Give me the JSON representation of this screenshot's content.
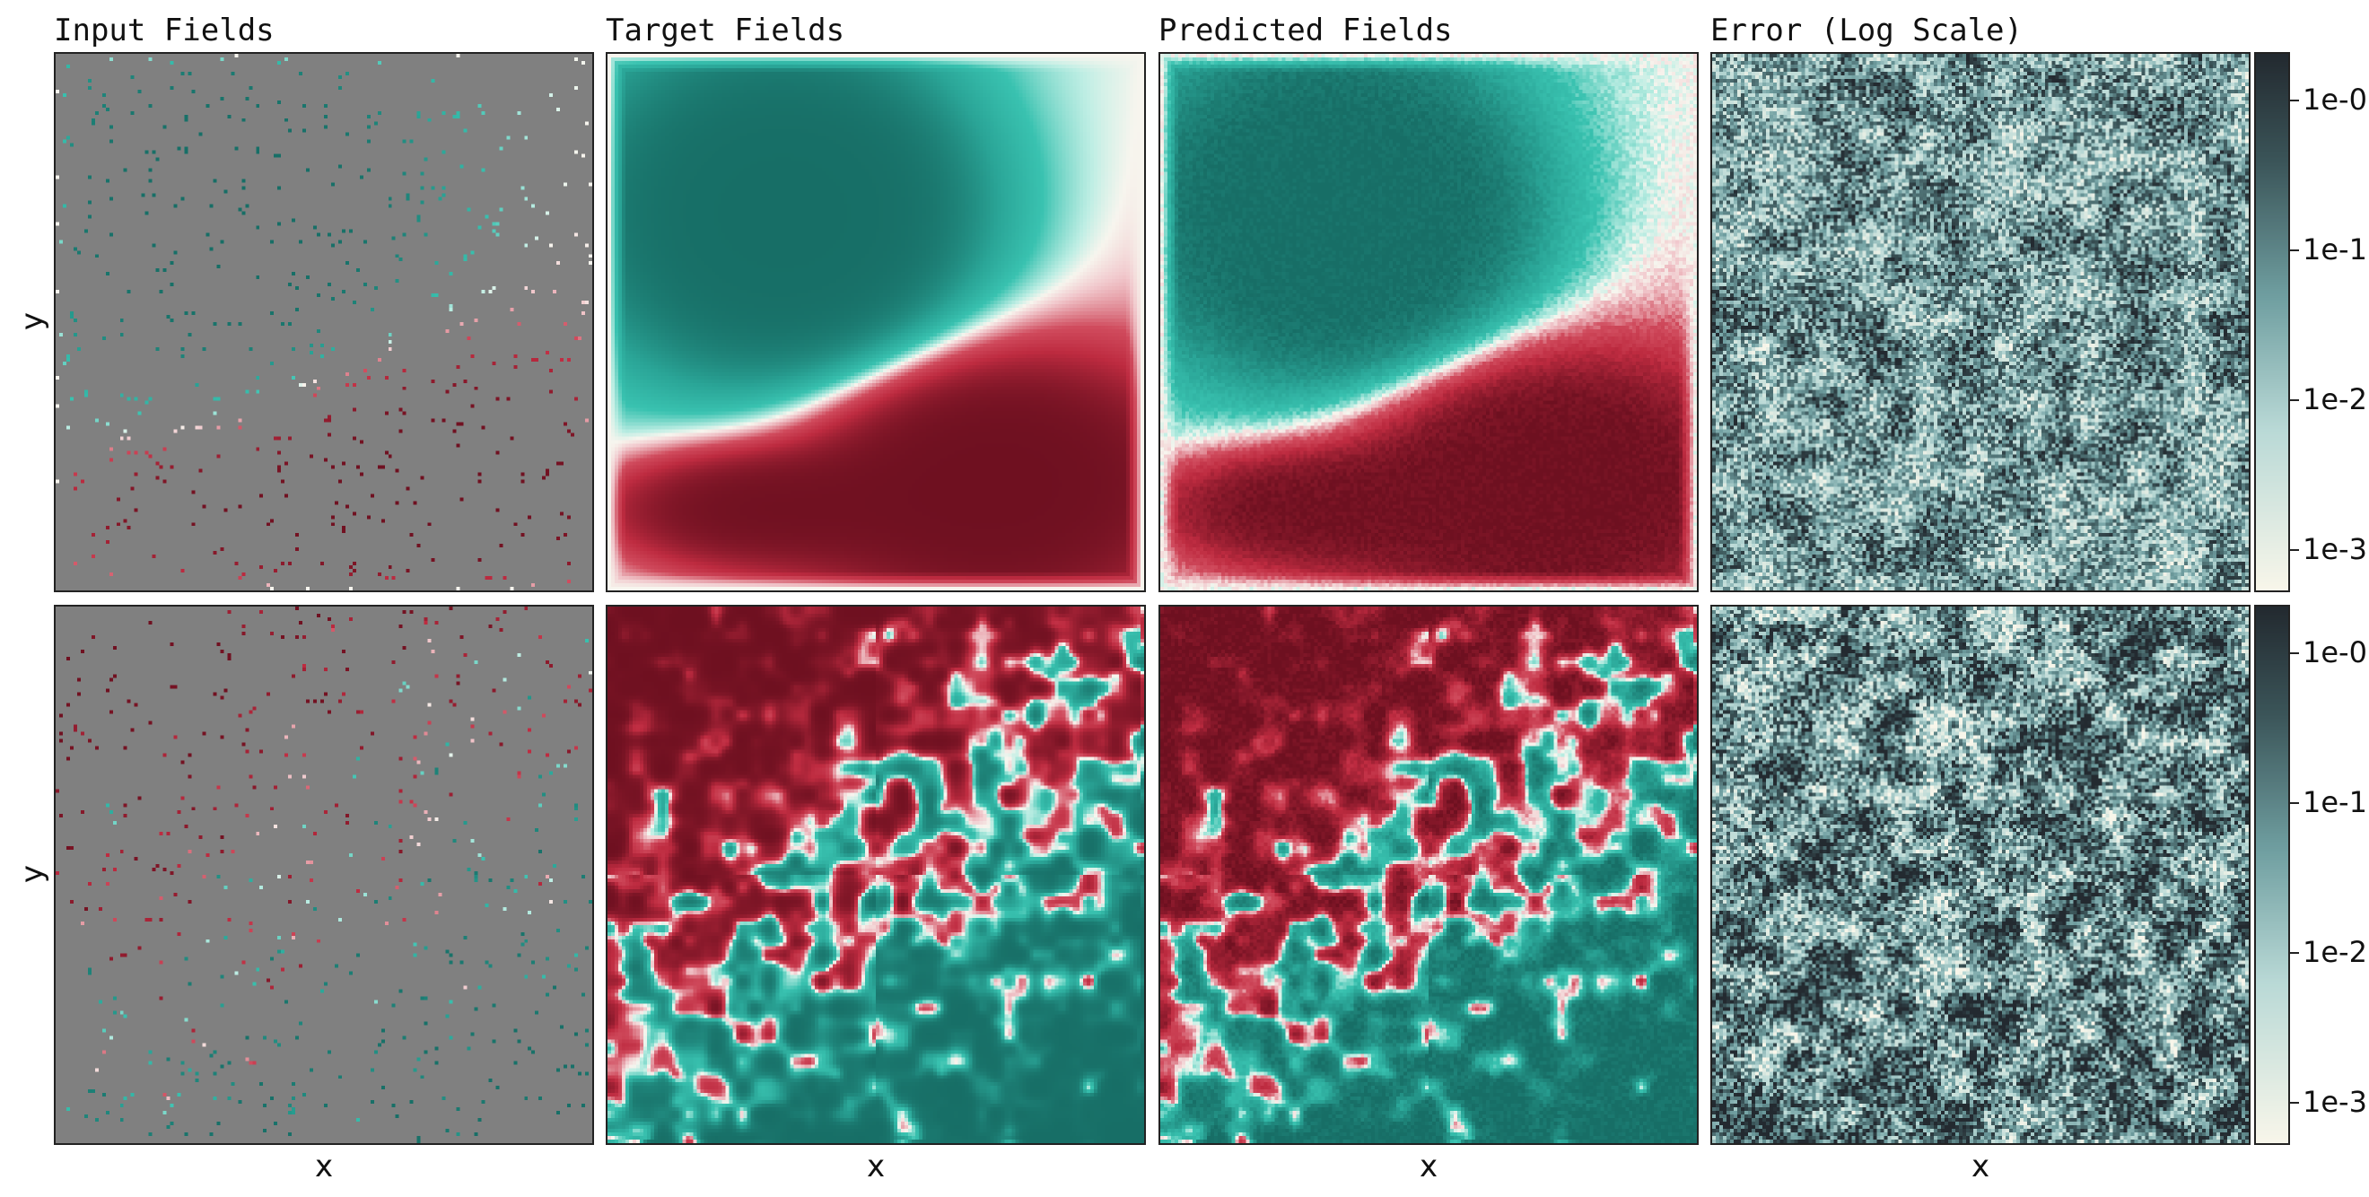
{
  "titles": [
    "Input Fields",
    "Target Fields",
    "Predicted Fields",
    "Error (Log Scale)"
  ],
  "xlabel": "x",
  "ylabel": "y",
  "colors": {
    "diverging_neg": "#1a7f72",
    "diverging_pos": "#7a1324",
    "neutral_bg": "#808080",
    "error_low": "#f7f5e9",
    "error_high": "#232a30"
  },
  "chart_data": [
    {
      "type": "heatmap",
      "title": "Input Fields",
      "xlabel": "",
      "ylabel": "y",
      "description_key": "sparse observations on gray background",
      "colormap": "diverging teal-white-red"
    },
    {
      "type": "heatmap",
      "title": "Target Fields",
      "colormap": "diverging teal-white-red"
    },
    {
      "type": "heatmap",
      "title": "Predicted Fields",
      "colormap": "diverging teal-white-red"
    },
    {
      "type": "heatmap",
      "title": "Error (Log Scale)",
      "colormap": "log scale cream-to-charcoal",
      "colorbar_ticks": [
        "1e-0",
        "1e-1",
        "1e-2",
        "1e-3"
      ],
      "colorbar_range": [
        0.0005,
        2
      ]
    },
    {
      "type": "heatmap",
      "title": "",
      "xlabel": "x",
      "ylabel": "y",
      "colormap": "diverging teal-white-red"
    },
    {
      "type": "heatmap",
      "title": "",
      "xlabel": "x",
      "colormap": "diverging teal-white-red"
    },
    {
      "type": "heatmap",
      "title": "",
      "xlabel": "x",
      "colormap": "diverging teal-white-red"
    },
    {
      "type": "heatmap",
      "title": "",
      "xlabel": "x",
      "colormap": "log scale cream-to-charcoal",
      "colorbar_ticks": [
        "1e-0",
        "1e-1",
        "1e-2",
        "1e-3"
      ],
      "colorbar_range": [
        0.0005,
        2
      ]
    }
  ],
  "colorbar_ticks": [
    "1e-0",
    "1e-1",
    "1e-2",
    "1e-3"
  ]
}
